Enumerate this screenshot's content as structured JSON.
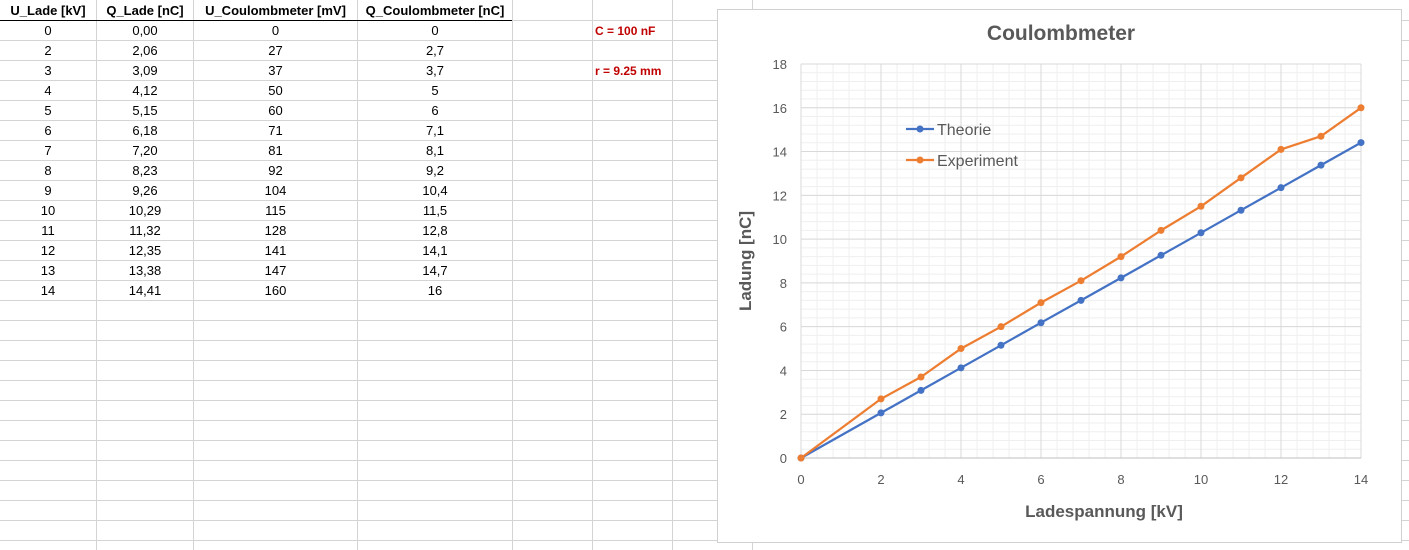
{
  "table": {
    "headers": [
      "U_Lade [kV]",
      "Q_Lade [nC]",
      "U_Coulombmeter [mV]",
      "Q_Coulombmeter [nC]"
    ],
    "rows": [
      [
        "0",
        "0,00",
        "0",
        "0"
      ],
      [
        "2",
        "2,06",
        "27",
        "2,7"
      ],
      [
        "3",
        "3,09",
        "37",
        "3,7"
      ],
      [
        "4",
        "4,12",
        "50",
        "5"
      ],
      [
        "5",
        "5,15",
        "60",
        "6"
      ],
      [
        "6",
        "6,18",
        "71",
        "7,1"
      ],
      [
        "7",
        "7,20",
        "81",
        "8,1"
      ],
      [
        "8",
        "8,23",
        "92",
        "9,2"
      ],
      [
        "9",
        "9,26",
        "104",
        "10,4"
      ],
      [
        "10",
        "10,29",
        "115",
        "11,5"
      ],
      [
        "11",
        "11,32",
        "128",
        "12,8"
      ],
      [
        "12",
        "12,35",
        "141",
        "14,1"
      ],
      [
        "13",
        "13,38",
        "147",
        "14,7"
      ],
      [
        "14",
        "14,41",
        "160",
        "16"
      ]
    ]
  },
  "notes": {
    "capacitance": "C = 100 nF",
    "radius": "r = 9.25 mm"
  },
  "chart_data": {
    "type": "line",
    "title": "Coulombmeter",
    "xlabel": "Ladespannung [kV]",
    "ylabel": "Ladung [nC]",
    "xlim": [
      0,
      14
    ],
    "ylim": [
      0,
      18
    ],
    "xticks": [
      0,
      2,
      4,
      6,
      8,
      10,
      12,
      14
    ],
    "yticks": [
      0,
      2,
      4,
      6,
      8,
      10,
      12,
      14,
      16,
      18
    ],
    "grid": true,
    "legend_position": "top-left",
    "series": [
      {
        "name": "Theorie",
        "color": "#4472c4",
        "x": [
          0,
          2,
          3,
          4,
          5,
          6,
          7,
          8,
          9,
          10,
          11,
          12,
          13,
          14
        ],
        "y": [
          0,
          2.06,
          3.09,
          4.12,
          5.15,
          6.18,
          7.2,
          8.23,
          9.26,
          10.29,
          11.32,
          12.35,
          13.38,
          14.41
        ]
      },
      {
        "name": "Experiment",
        "color": "#ed7d31",
        "x": [
          0,
          2,
          3,
          4,
          5,
          6,
          7,
          8,
          9,
          10,
          11,
          12,
          13,
          14
        ],
        "y": [
          0,
          2.7,
          3.7,
          5,
          6,
          7.1,
          8.1,
          9.2,
          10.4,
          11.5,
          12.8,
          14.1,
          14.7,
          16
        ]
      }
    ]
  }
}
